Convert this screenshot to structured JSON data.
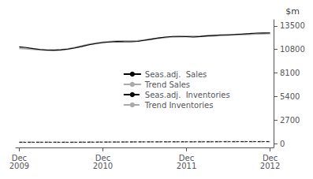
{
  "chart_data": {
    "type": "line",
    "title": "$m",
    "categories": [
      "Dec\n2009",
      null,
      null,
      null,
      null,
      null,
      null,
      null,
      null,
      null,
      null,
      null,
      "Dec\n2010",
      null,
      null,
      null,
      null,
      null,
      null,
      null,
      null,
      null,
      null,
      null,
      "Dec\n2011",
      null,
      null,
      null,
      null,
      null,
      null,
      null,
      null,
      null,
      null,
      null,
      "Dec\n2012"
    ],
    "series": [
      {
        "name": "Seas.adj.  Sales",
        "color": "#000000",
        "line_style": "solid",
        "values": [
          11100,
          11020,
          10900,
          10800,
          10730,
          10720,
          10760,
          10840,
          10980,
          11150,
          11340,
          11480,
          11580,
          11660,
          11710,
          11690,
          11680,
          11720,
          11850,
          11980,
          12120,
          12220,
          12280,
          12290,
          12260,
          12220,
          12270,
          12360,
          12410,
          12460,
          12460,
          12510,
          12560,
          12610,
          12670,
          12680,
          12690
        ]
      },
      {
        "name": "Trend Sales",
        "color": "#aaaaaa",
        "line_style": "solid",
        "values": [
          10940,
          10890,
          10820,
          10760,
          10720,
          10710,
          10750,
          10850,
          11010,
          11190,
          11370,
          11510,
          11620,
          11700,
          11740,
          11750,
          11750,
          11790,
          11870,
          11980,
          12080,
          12170,
          12240,
          12280,
          12300,
          12300,
          12310,
          12340,
          12370,
          12410,
          12450,
          12490,
          12520,
          12550,
          12580,
          12610,
          12630
        ]
      },
      {
        "name": "Seas.adj.  Inventories",
        "color": "#000000",
        "line_style": "dashed",
        "values": [
          195,
          192,
          196,
          198,
          200,
          197,
          194,
          192,
          196,
          200,
          203,
          208,
          214,
          220,
          225,
          228,
          232,
          236,
          238,
          240,
          244,
          247,
          249,
          251,
          249,
          247,
          250,
          253,
          256,
          259,
          261,
          263,
          266,
          268,
          270,
          270,
          271
        ]
      },
      {
        "name": "Trend Inventories",
        "color": "#aaaaaa",
        "line_style": "dashed",
        "values": [
          193,
          195,
          197,
          199,
          200,
          201,
          202,
          203,
          204,
          207,
          210,
          213,
          217,
          221,
          225,
          228,
          231,
          234,
          237,
          240,
          243,
          245,
          247,
          249,
          250,
          251,
          252,
          253,
          255,
          257,
          259,
          261,
          263,
          265,
          267,
          269,
          270
        ]
      }
    ],
    "ylim": [
      -400,
      14200
    ],
    "yticks": [
      0,
      2700,
      5400,
      8100,
      10800,
      13500
    ],
    "grid": false,
    "legend": "center"
  }
}
